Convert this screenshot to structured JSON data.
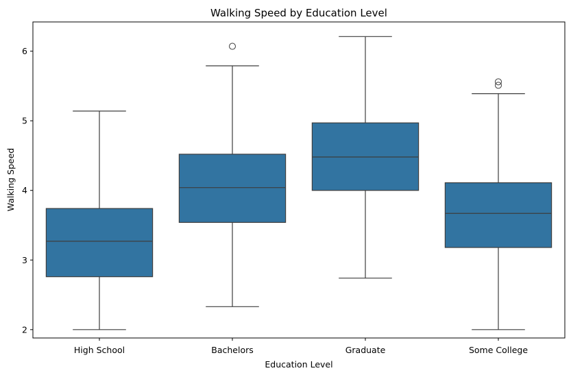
{
  "chart_data": {
    "type": "box",
    "title": "Walking Speed by Education Level",
    "xlabel": "Education Level",
    "ylabel": "Walking Speed",
    "ylim": [
      1.88,
      6.42
    ],
    "yticks": [
      2,
      3,
      4,
      5,
      6
    ],
    "grid": false,
    "legend": "none",
    "box_color": "#3274a1",
    "line_color": "#3d3d3d",
    "categories": [
      "High School",
      "Bachelors",
      "Graduate",
      "Some College"
    ],
    "boxes": [
      {
        "category": "High School",
        "whisker_low": 2.0,
        "q1": 2.76,
        "median": 3.27,
        "q3": 3.74,
        "whisker_high": 5.14,
        "outliers": []
      },
      {
        "category": "Bachelors",
        "whisker_low": 2.33,
        "q1": 3.54,
        "median": 4.04,
        "q3": 4.52,
        "whisker_high": 5.79,
        "outliers": [
          6.07
        ]
      },
      {
        "category": "Graduate",
        "whisker_low": 2.74,
        "q1": 4.0,
        "median": 4.48,
        "q3": 4.97,
        "whisker_high": 6.21,
        "outliers": []
      },
      {
        "category": "Some College",
        "whisker_low": 2.0,
        "q1": 3.18,
        "median": 3.67,
        "q3": 4.11,
        "whisker_high": 5.39,
        "outliers": [
          5.51,
          5.56
        ]
      }
    ]
  }
}
